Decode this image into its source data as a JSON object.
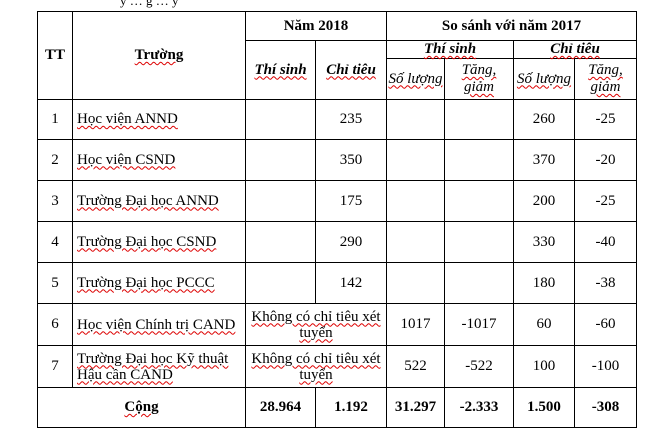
{
  "cropped_text": "y … g … y",
  "table": {
    "headers": {
      "tt": "TT",
      "truong": "Trường",
      "nam2018": "Năm 2018",
      "sosanh": "So sánh với năm 2017",
      "thisinh": "Thí sinh",
      "chitieu": "Chỉ tiêu",
      "thisinh2017": "Thí sinh",
      "chitieu2017": "Chỉ tiêu",
      "soluong_a": "Số lượng",
      "tanggiam_a": "Tăng, giảm",
      "soluong_b": "Số lượng",
      "tanggiam_b": "Tăng, giảm"
    },
    "rows": [
      {
        "tt": "1",
        "truong": "Học viện ANND",
        "thisinh": "",
        "chitieu": "235",
        "ts_sl": "",
        "ts_tg": "",
        "ct_sl": "260",
        "ct_tg": "-25"
      },
      {
        "tt": "2",
        "truong": "Học viện CSND",
        "thisinh": "",
        "chitieu": "350",
        "ts_sl": "",
        "ts_tg": "",
        "ct_sl": "370",
        "ct_tg": "-20"
      },
      {
        "tt": "3",
        "truong": "Trường Đại học ANND",
        "thisinh": "",
        "chitieu": "175",
        "ts_sl": "",
        "ts_tg": "",
        "ct_sl": "200",
        "ct_tg": "-25"
      },
      {
        "tt": "4",
        "truong": "Trường Đại học CSND",
        "thisinh": "",
        "chitieu": "290",
        "ts_sl": "",
        "ts_tg": "",
        "ct_sl": "330",
        "ct_tg": "-40"
      },
      {
        "tt": "5",
        "truong": "Trường Đại học PCCC",
        "thisinh": "",
        "chitieu": "142",
        "ts_sl": "",
        "ts_tg": "",
        "ct_sl": "180",
        "ct_tg": "-38"
      },
      {
        "tt": "6",
        "truong": "Học viện Chính trị CAND",
        "merged_note": "Không có chỉ tiêu xét tuyển",
        "ts_sl": "1017",
        "ts_tg": "-1017",
        "ct_sl": "60",
        "ct_tg": "-60"
      },
      {
        "tt": "7",
        "truong": "Trường Đại học Kỹ thuật Hậu cần CAND",
        "merged_note": "Không có chỉ tiêu xét tuyển",
        "ts_sl": "522",
        "ts_tg": "-522",
        "ct_sl": "100",
        "ct_tg": "-100"
      }
    ],
    "total": {
      "label": "Cộng",
      "thisinh": "28.964",
      "chitieu": "1.192",
      "ts_sl": "31.297",
      "ts_tg": "-2.333",
      "ct_sl": "1.500",
      "ct_tg": "-308"
    }
  }
}
